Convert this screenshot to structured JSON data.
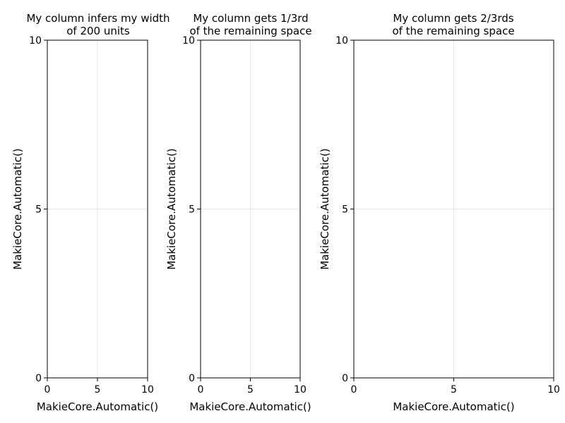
{
  "chart_data": [
    {
      "type": "line",
      "title": "My column infers my width\nof 200 units",
      "xlabel": "MakieCore.Automatic()",
      "ylabel": "MakieCore.Automatic()",
      "xlim": [
        0,
        10
      ],
      "ylim": [
        0,
        10
      ],
      "xticks": [
        0,
        5,
        10
      ],
      "yticks": [
        0,
        5,
        10
      ],
      "grid": true,
      "series": []
    },
    {
      "type": "line",
      "title": "My column gets 1/3rd\nof the remaining space",
      "xlabel": "MakieCore.Automatic()",
      "ylabel": "MakieCore.Automatic()",
      "xlim": [
        0,
        10
      ],
      "ylim": [
        0,
        10
      ],
      "xticks": [
        0,
        5,
        10
      ],
      "yticks": [
        0,
        5,
        10
      ],
      "grid": true,
      "series": []
    },
    {
      "type": "line",
      "title": "My column gets 2/3rds\nof the remaining space",
      "xlabel": "MakieCore.Automatic()",
      "ylabel": "MakieCore.Automatic()",
      "xlim": [
        0,
        10
      ],
      "ylim": [
        0,
        10
      ],
      "xticks": [
        0,
        5,
        10
      ],
      "yticks": [
        0,
        5,
        10
      ],
      "grid": true,
      "series": []
    }
  ]
}
